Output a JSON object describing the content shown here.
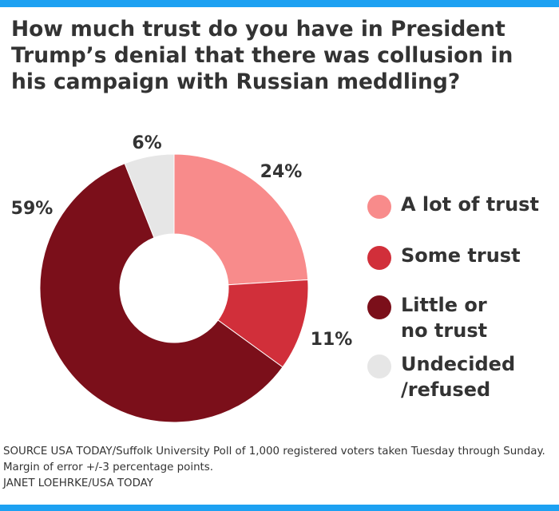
{
  "title": "How much trust do you have in President Trump’s denial that there was collusion in his campaign with Russian meddling?",
  "chart_data": {
    "type": "pie",
    "donut": true,
    "categories": [
      "A lot of trust",
      "Some trust",
      "Little or no trust",
      "Undecided /refused"
    ],
    "values": [
      24,
      11,
      59,
      6
    ],
    "value_labels": [
      "24%",
      "11%",
      "59%",
      "6%"
    ],
    "colors": [
      "#f88b8b",
      "#d12f3a",
      "#7b0f1a",
      "#e6e6e6"
    ],
    "legend_placement": "right"
  },
  "legend": [
    {
      "lines": [
        "A lot of trust"
      ],
      "color": "#f88b8b"
    },
    {
      "lines": [
        "Some trust"
      ],
      "color": "#d12f3a"
    },
    {
      "lines": [
        "Little or",
        "no trust"
      ],
      "color": "#7b0f1a"
    },
    {
      "lines": [
        "Undecided",
        "/refused"
      ],
      "color": "#e6e6e6"
    }
  ],
  "footer": {
    "source": "SOURCE USA TODAY/Suffolk University Poll of 1,000 registered voters taken Tuesday through Sunday. Margin of error +/-3 percentage points.",
    "credit": "JANET LOEHRKE/USA TODAY"
  },
  "colors": {
    "accent_bar": "#1da1f2",
    "text": "#333333"
  }
}
